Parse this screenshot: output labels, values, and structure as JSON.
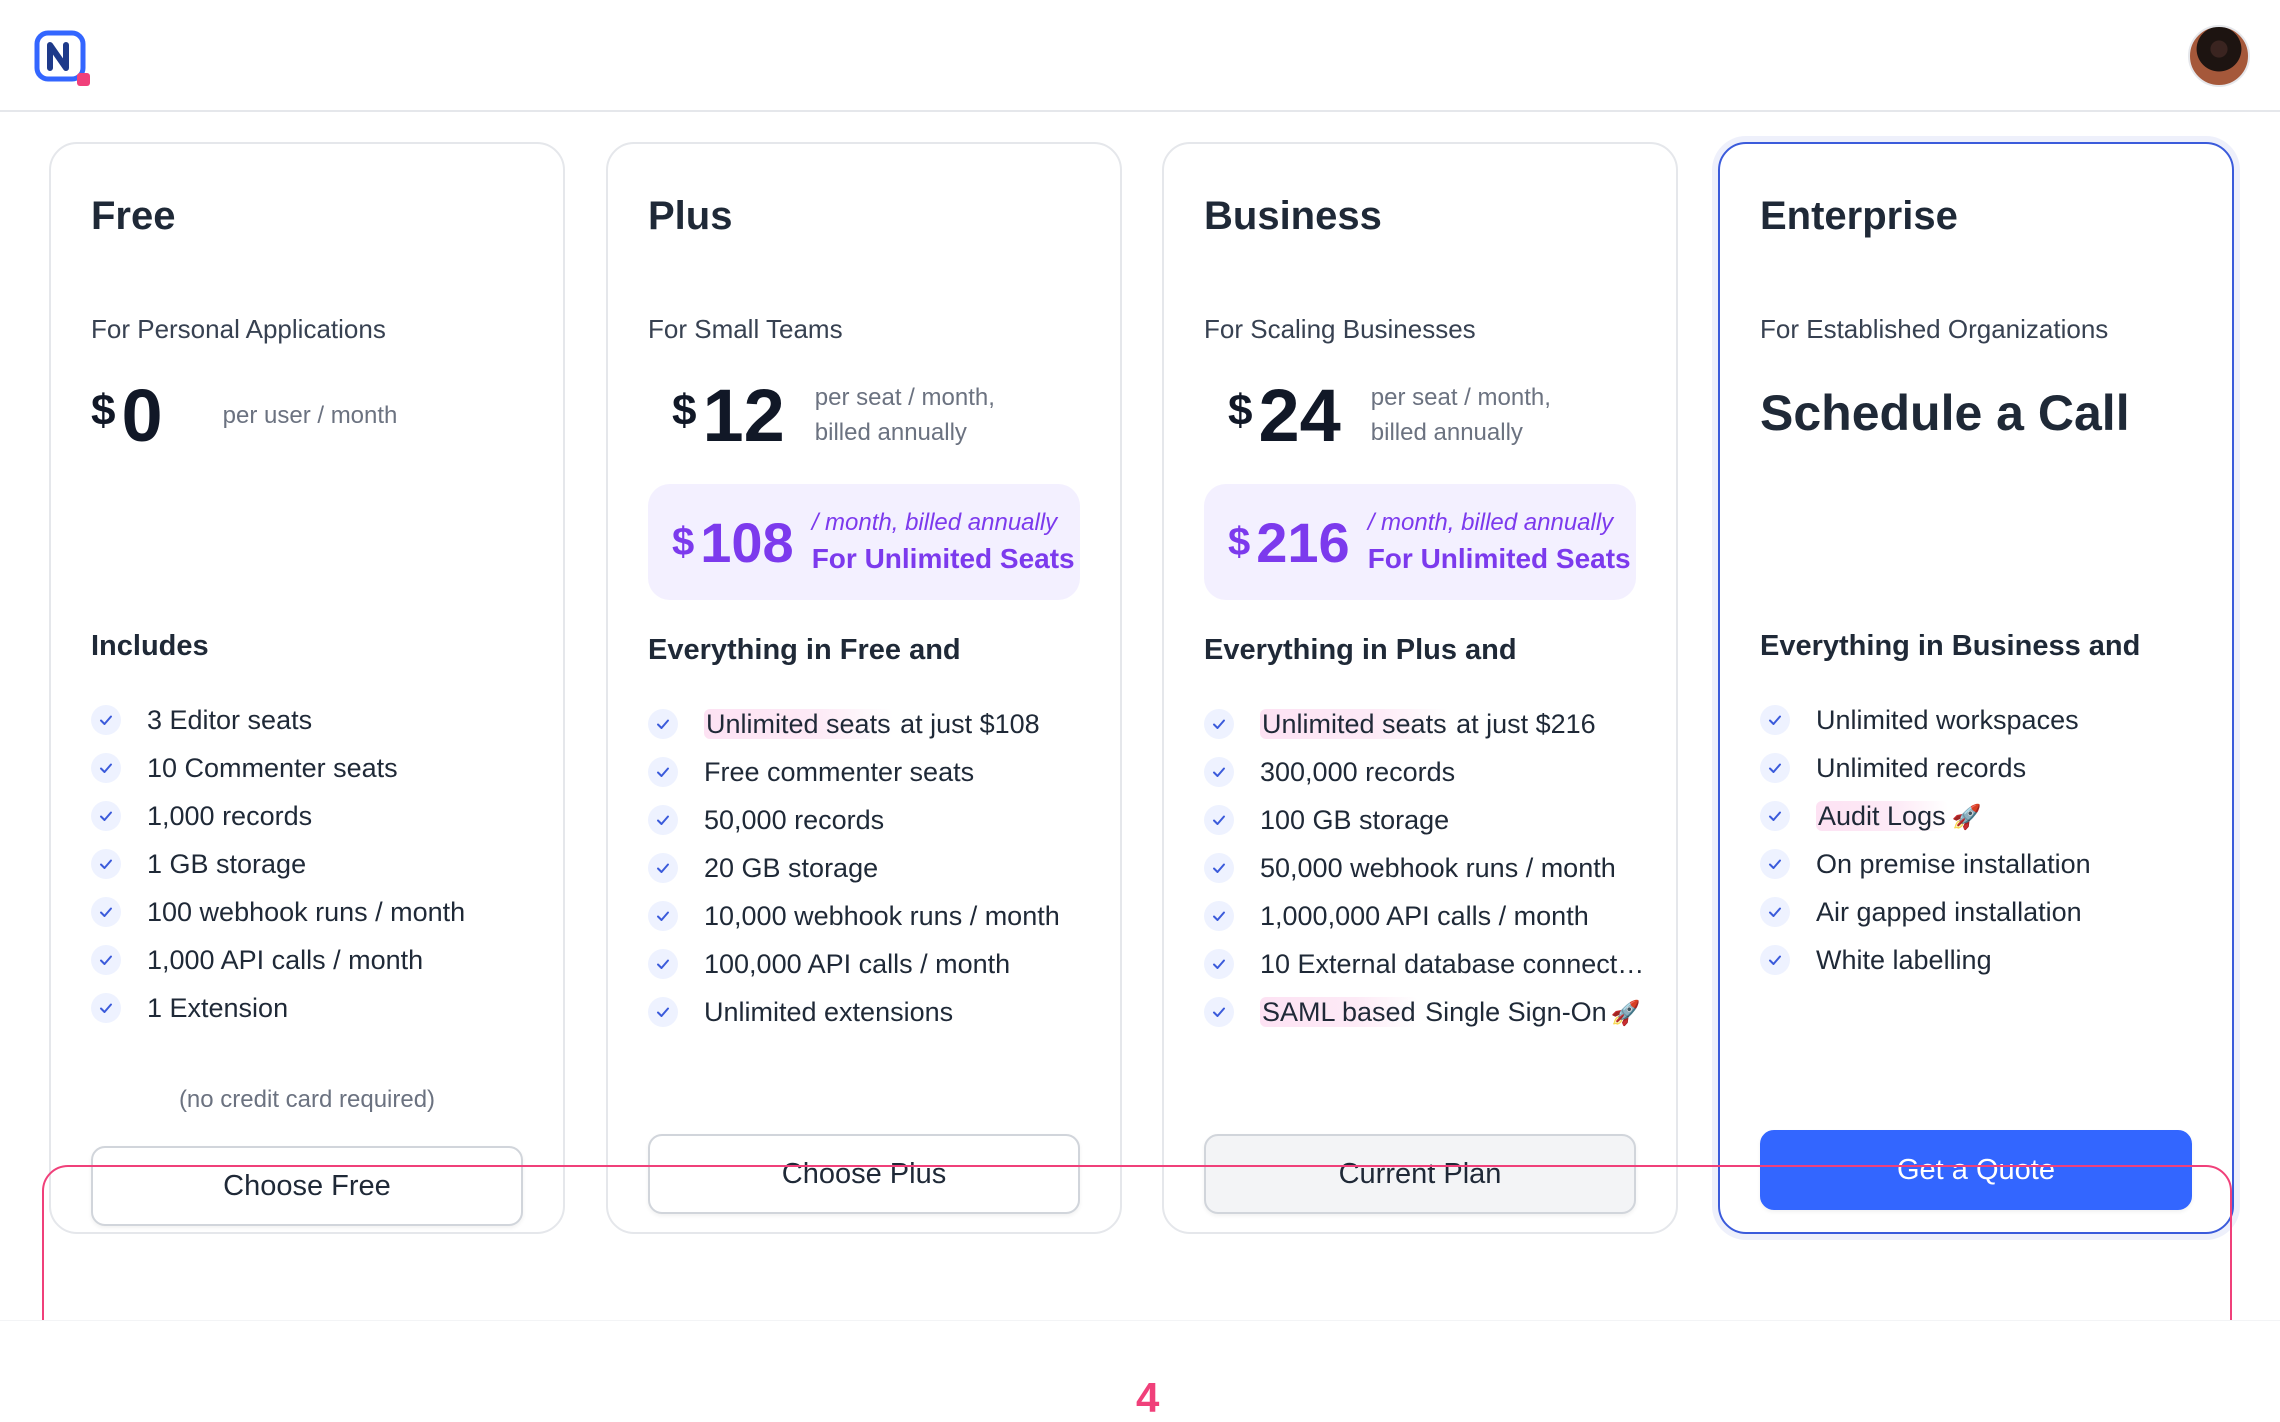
{
  "header": {
    "logo_icon": "nocodb-logo-icon",
    "avatar_icon": "user-avatar"
  },
  "plans": [
    {
      "name": "Free",
      "subtitle": "For Personal Applications",
      "currency": "$",
      "price": "0",
      "price_note": "per user / month",
      "includes_title": "Includes",
      "features": [
        "3 Editor seats",
        "10 Commenter seats",
        "1,000 records",
        "1 GB storage",
        "100 webhook runs / month",
        "1,000 API calls / month",
        "1 Extension"
      ],
      "no_credit_card": "(no credit card required)",
      "button_label": "Choose Free"
    },
    {
      "name": "Plus",
      "subtitle": "For Small Teams",
      "currency": "$",
      "price": "12",
      "price_note": "per seat / month, billed annually",
      "unlimited_currency": "$",
      "unlimited_price": "108",
      "unlimited_note": "/ month, billed annually",
      "unlimited_label": "For Unlimited Seats",
      "includes_title": "Everything in Free and",
      "features": [
        {
          "hl": "Unlimited seats",
          "rest": " at just $108"
        },
        "Free commenter seats",
        "50,000 records",
        "20 GB storage",
        "10,000 webhook runs / month",
        "100,000 API calls / month",
        "Unlimited extensions"
      ],
      "button_label": "Choose Plus"
    },
    {
      "name": "Business",
      "subtitle": "For Scaling Businesses",
      "currency": "$",
      "price": "24",
      "price_note": "per seat / month, billed annually",
      "unlimited_currency": "$",
      "unlimited_price": "216",
      "unlimited_note": "/ month, billed annually",
      "unlimited_label": "For Unlimited Seats",
      "includes_title": "Everything in Plus and",
      "features": [
        {
          "hl": "Unlimited seats",
          "rest": " at just $216"
        },
        "300,000 records",
        "100 GB storage",
        "50,000 webhook runs / month",
        "1,000,000 API calls / month",
        "10 External database connect…",
        {
          "hl": "SAML based",
          "rest": " Single Sign-On",
          "rocket": "🚀"
        }
      ],
      "button_label": "Current Plan"
    },
    {
      "name": "Enterprise",
      "subtitle": "For Established Organizations",
      "cta_title": "Schedule a Call",
      "includes_title": "Everything in Business and",
      "features": [
        "Unlimited workspaces",
        "Unlimited records",
        {
          "hl": "Audit Logs",
          "rest": "",
          "rocket": "🚀"
        },
        "On premise installation",
        "Air gapped installation",
        "White labelling"
      ],
      "button_label": "Get a Quote"
    }
  ],
  "annotation": {
    "number": "4",
    "color": "#f0407a"
  },
  "colors": {
    "accent_blue": "#3366ff",
    "accent_purple": "#7c3aed",
    "check_blue": "#3b5bdb"
  }
}
